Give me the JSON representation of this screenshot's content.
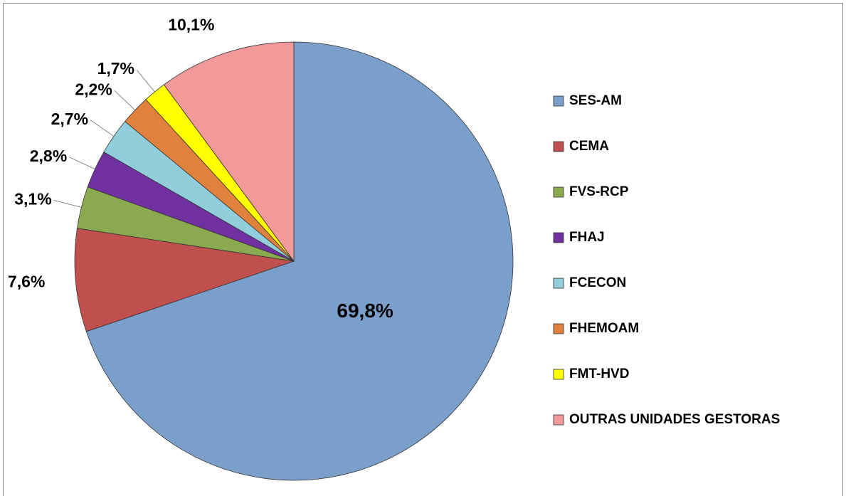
{
  "chart_data": {
    "type": "pie",
    "categories": [
      "SES-AM",
      "CEMA",
      "FVS-RCP",
      "FHAJ",
      "FCECON",
      "FHEMOAM",
      "FMT-HVD",
      "OUTRAS UNIDADES GESTORAS"
    ],
    "values": [
      69.8,
      7.6,
      3.1,
      2.8,
      2.7,
      2.2,
      1.7,
      10.1
    ],
    "value_labels": [
      "69,8%",
      "7,6%",
      "3,1%",
      "2,8%",
      "2,7%",
      "2,2%",
      "1,7%",
      "10,1%"
    ],
    "colors": [
      "#7b9fcb",
      "#c0504d",
      "#8aaa4f",
      "#7030a0",
      "#92cddc",
      "#e0823d",
      "#ffff00",
      "#f29a9a"
    ],
    "legend": "right"
  }
}
